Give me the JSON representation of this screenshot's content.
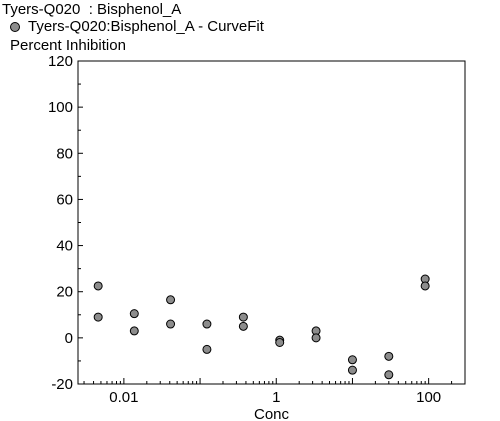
{
  "chart_data": {
    "type": "scatter",
    "title": "Tyers-Q020  : Bisphenol_A",
    "legend": [
      "Tyers-Q020:Bisphenol_A - CurveFit"
    ],
    "ylabel": "Percent Inhibition",
    "xlabel": "Conc",
    "x_scale": "log",
    "xlim": [
      0.0025,
      300
    ],
    "ylim": [
      -20,
      120
    ],
    "x_ticks": [
      0.01,
      1,
      100
    ],
    "x_tick_labels": [
      "0.01",
      "1",
      "100"
    ],
    "y_ticks": [
      -20,
      0,
      20,
      40,
      60,
      80,
      100,
      120
    ],
    "y_tick_labels": [
      "-20",
      "0",
      "20",
      "40",
      "60",
      "80",
      "100",
      "120"
    ],
    "grid": false,
    "marker_color": "#8c8c8c",
    "series": [
      {
        "name": "Tyers-Q020:Bisphenol_A - CurveFit",
        "points": [
          {
            "x": 0.0046,
            "y": 22.5
          },
          {
            "x": 0.0046,
            "y": 9
          },
          {
            "x": 0.0137,
            "y": 10.5
          },
          {
            "x": 0.0137,
            "y": 3
          },
          {
            "x": 0.041,
            "y": 16.5
          },
          {
            "x": 0.041,
            "y": 6
          },
          {
            "x": 0.123,
            "y": 6
          },
          {
            "x": 0.123,
            "y": -5
          },
          {
            "x": 0.37,
            "y": 9
          },
          {
            "x": 0.37,
            "y": 5
          },
          {
            "x": 1.11,
            "y": -1
          },
          {
            "x": 1.11,
            "y": -2
          },
          {
            "x": 3.33,
            "y": 3
          },
          {
            "x": 3.33,
            "y": 0
          },
          {
            "x": 10,
            "y": -9.5
          },
          {
            "x": 10,
            "y": -14
          },
          {
            "x": 30,
            "y": -8
          },
          {
            "x": 30,
            "y": -16
          },
          {
            "x": 90,
            "y": 25.5
          },
          {
            "x": 90,
            "y": 22.5
          }
        ]
      }
    ]
  }
}
